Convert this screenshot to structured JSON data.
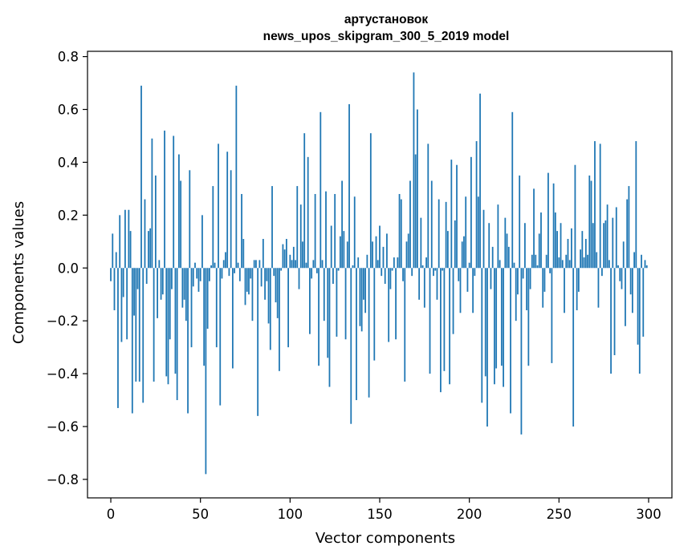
{
  "chart_data": {
    "type": "bar",
    "title_line1": "артустановок",
    "title_line2": "news_upos_skipgram_300_5_2019 model",
    "xlabel": "Vector components",
    "ylabel": "Components values",
    "xlim": [
      -13,
      313
    ],
    "ylim": [
      -0.87,
      0.82
    ],
    "xticks": [
      0,
      50,
      100,
      150,
      200,
      250,
      300
    ],
    "xtick_labels": [
      "0",
      "50",
      "100",
      "150",
      "200",
      "250",
      "300"
    ],
    "yticks": [
      0.8,
      0.6,
      0.4,
      0.2,
      0.0,
      -0.2,
      -0.4,
      -0.6,
      -0.8
    ],
    "ytick_labels": [
      "0.8",
      "0.6",
      "0.4",
      "0.2",
      "0.0",
      "−0.2",
      "−0.4",
      "−0.6",
      "−0.8"
    ],
    "bar_color": "#1f77b4",
    "x": "0..299",
    "values": [
      -0.05,
      0.13,
      -0.16,
      0.06,
      -0.53,
      0.2,
      -0.28,
      -0.11,
      0.22,
      -0.27,
      0.22,
      0.14,
      -0.55,
      -0.18,
      -0.43,
      -0.08,
      -0.43,
      0.69,
      -0.51,
      0.26,
      -0.06,
      0.14,
      0.15,
      0.49,
      -0.43,
      0.35,
      -0.19,
      0.03,
      -0.12,
      -0.1,
      0.52,
      -0.41,
      -0.44,
      -0.27,
      -0.08,
      0.5,
      -0.4,
      -0.5,
      0.43,
      0.33,
      -0.15,
      -0.12,
      -0.2,
      -0.55,
      0.37,
      -0.3,
      -0.07,
      0.02,
      -0.04,
      -0.09,
      -0.05,
      0.2,
      -0.37,
      -0.78,
      -0.23,
      -0.05,
      0.01,
      0.31,
      0.02,
      -0.3,
      0.47,
      -0.52,
      -0.04,
      0.03,
      0.06,
      0.44,
      -0.03,
      0.37,
      -0.38,
      -0.02,
      0.69,
      0.02,
      -0.05,
      0.28,
      0.11,
      -0.14,
      -0.09,
      -0.1,
      -0.04,
      -0.2,
      0.03,
      0.03,
      -0.56,
      0.03,
      -0.07,
      0.11,
      -0.12,
      -0.05,
      -0.21,
      -0.31,
      0.31,
      -0.03,
      -0.13,
      -0.19,
      -0.39,
      -0.01,
      0.09,
      0.07,
      0.11,
      -0.3,
      0.05,
      0.03,
      0.08,
      0.03,
      0.31,
      -0.08,
      0.24,
      0.1,
      0.51,
      0.02,
      0.42,
      -0.25,
      -0.04,
      0.03,
      0.28,
      -0.02,
      -0.37,
      0.59,
      0.03,
      -0.2,
      0.29,
      -0.34,
      -0.45,
      0.16,
      -0.06,
      0.28,
      -0.26,
      -0.01,
      0.12,
      0.33,
      0.14,
      -0.27,
      0.1,
      0.62,
      -0.59,
      0.01,
      0.27,
      -0.5,
      0.04,
      -0.22,
      -0.24,
      -0.12,
      -0.17,
      0.05,
      -0.49,
      0.51,
      0.1,
      -0.35,
      0.12,
      0.03,
      0.16,
      -0.03,
      0.08,
      -0.06,
      0.13,
      -0.28,
      -0.08,
      -0.01,
      0.04,
      -0.27,
      0.04,
      0.28,
      0.26,
      -0.05,
      -0.43,
      0.1,
      0.13,
      0.33,
      -0.03,
      0.74,
      0.43,
      0.6,
      -0.12,
      0.19,
      0.01,
      -0.15,
      0.04,
      0.47,
      -0.4,
      0.33,
      -0.03,
      -0.01,
      -0.12,
      0.26,
      -0.47,
      -0.01,
      -0.39,
      0.25,
      0.14,
      -0.44,
      0.41,
      -0.25,
      0.18,
      0.39,
      -0.05,
      -0.17,
      0.1,
      0.12,
      0.27,
      -0.09,
      0.02,
      0.42,
      -0.17,
      -0.03,
      0.48,
      0.27,
      0.66,
      -0.51,
      0.22,
      -0.41,
      -0.6,
      0.17,
      -0.08,
      0.08,
      -0.44,
      -0.38,
      0.24,
      0.03,
      -0.37,
      -0.45,
      0.19,
      0.13,
      0.08,
      -0.55,
      0.59,
      0.02,
      -0.2,
      -0.1,
      0.35,
      -0.63,
      -0.04,
      0.17,
      -0.16,
      -0.37,
      -0.08,
      0.05,
      0.3,
      0.05,
      0.01,
      0.13,
      0.21,
      -0.15,
      -0.09,
      0.05,
      0.36,
      -0.02,
      -0.36,
      0.32,
      0.21,
      0.14,
      0.04,
      0.17,
      0.03,
      -0.17,
      0.05,
      0.11,
      0.03,
      0.15,
      -0.6,
      0.39,
      -0.16,
      -0.09,
      0.07,
      0.14,
      0.04,
      0.11,
      0.05,
      0.35,
      0.33,
      0.17,
      0.48,
      0.06,
      -0.15,
      0.47,
      -0.03,
      0.17,
      0.18,
      0.24,
      0.03,
      -0.4,
      0.19,
      -0.33,
      0.23,
      0.01,
      -0.05,
      -0.08,
      0.1,
      -0.22,
      0.26,
      0.31,
      -0.1,
      -0.17,
      0.06,
      0.48,
      -0.29,
      -0.4,
      0.05,
      -0.26,
      0.03,
      0.01
    ]
  }
}
